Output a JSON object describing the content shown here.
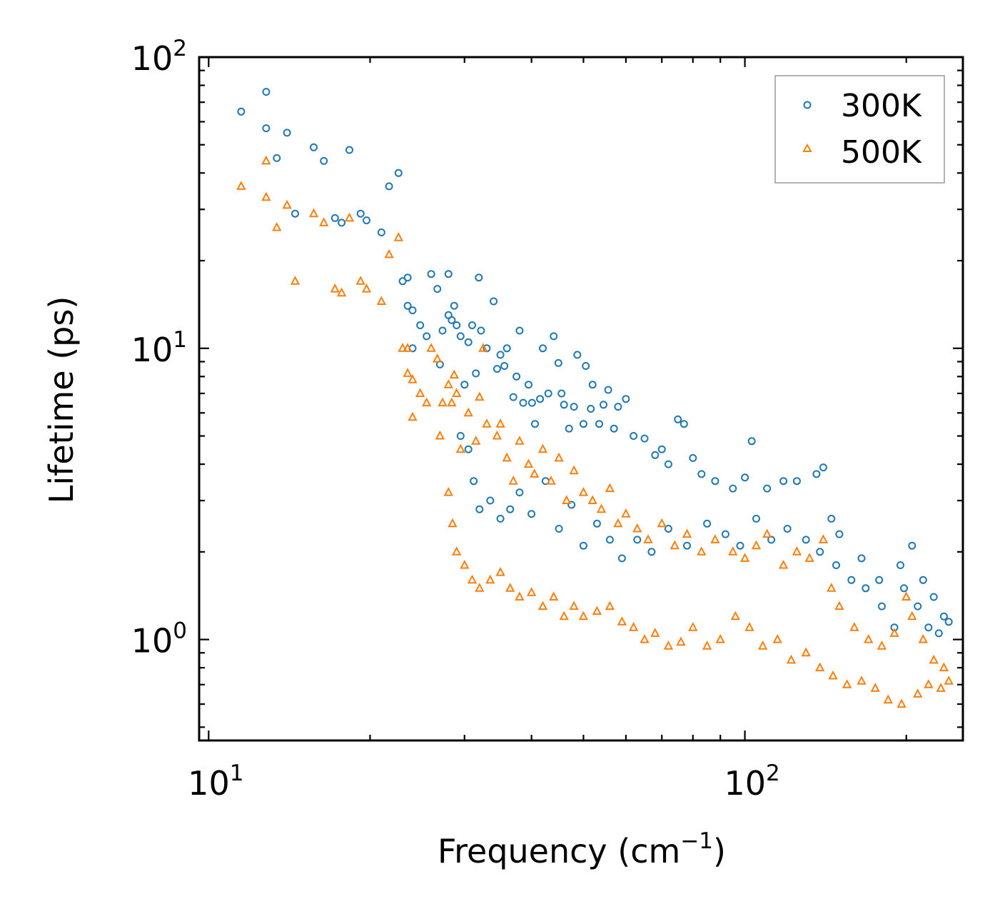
{
  "chart_data": {
    "type": "scatter",
    "title": "",
    "xlabel": "Frequency (cm",
    "xlabel_sup": "−1",
    "xlabel_close": ")",
    "ylabel": "Lifetime (ps)",
    "xscale": "log",
    "yscale": "log",
    "xlim": [
      9.6,
      255
    ],
    "ylim": [
      0.45,
      100
    ],
    "x_ticks": [
      {
        "value": 10,
        "base": "10",
        "exp": "1"
      },
      {
        "value": 100,
        "base": "10",
        "exp": "2"
      }
    ],
    "y_ticks": [
      {
        "value": 1,
        "base": "10",
        "exp": "0"
      },
      {
        "value": 10,
        "base": "10",
        "exp": "1"
      },
      {
        "value": 100,
        "base": "10",
        "exp": "2"
      }
    ],
    "legend": {
      "position": "top-right"
    },
    "series": [
      {
        "name": "300K",
        "marker": "circle",
        "color": "#1f77b4",
        "points": [
          [
            11.5,
            65.0
          ],
          [
            12.8,
            76.0
          ],
          [
            12.8,
            57.0
          ],
          [
            13.4,
            45.0
          ],
          [
            14.0,
            55.0
          ],
          [
            14.5,
            29.0
          ],
          [
            15.7,
            49.0
          ],
          [
            16.4,
            44.0
          ],
          [
            17.2,
            28.0
          ],
          [
            17.7,
            27.0
          ],
          [
            18.3,
            48.0
          ],
          [
            19.2,
            29.0
          ],
          [
            19.7,
            27.5
          ],
          [
            21.0,
            25.0
          ],
          [
            21.7,
            36.0
          ],
          [
            22.6,
            40.0
          ],
          [
            23.0,
            17.0
          ],
          [
            23.5,
            17.5
          ],
          [
            23.5,
            14.0
          ],
          [
            24.0,
            13.5
          ],
          [
            24.0,
            10.0
          ],
          [
            24.8,
            12.0
          ],
          [
            25.5,
            11.0
          ],
          [
            26.0,
            18.0
          ],
          [
            26.7,
            16.0
          ],
          [
            27.0,
            8.8
          ],
          [
            27.3,
            11.5
          ],
          [
            28.0,
            13.0
          ],
          [
            28.0,
            18.0
          ],
          [
            28.4,
            12.5
          ],
          [
            28.7,
            14.0
          ],
          [
            29.0,
            12.0
          ],
          [
            29.5,
            11.0
          ],
          [
            30.0,
            7.5
          ],
          [
            30.5,
            10.5
          ],
          [
            31.0,
            12.0
          ],
          [
            31.5,
            8.2
          ],
          [
            31.9,
            17.5
          ],
          [
            32.2,
            11.5
          ],
          [
            33.0,
            10.0
          ],
          [
            34.0,
            14.5
          ],
          [
            34.5,
            8.5
          ],
          [
            35.0,
            9.5
          ],
          [
            35.6,
            8.7
          ],
          [
            36.0,
            10.0
          ],
          [
            37.0,
            6.8
          ],
          [
            37.5,
            8.0
          ],
          [
            38.0,
            11.5
          ],
          [
            38.6,
            6.5
          ],
          [
            39.5,
            7.5
          ],
          [
            40.1,
            6.5
          ],
          [
            40.6,
            5.5
          ],
          [
            41.5,
            6.7
          ],
          [
            42.0,
            10.0
          ],
          [
            43.0,
            7.0
          ],
          [
            44.0,
            11.0
          ],
          [
            44.9,
            8.9
          ],
          [
            45.5,
            7.0
          ],
          [
            46.0,
            6.4
          ],
          [
            47.0,
            5.3
          ],
          [
            48.0,
            6.3
          ],
          [
            48.7,
            9.5
          ],
          [
            50.0,
            5.5
          ],
          [
            50.5,
            8.7
          ],
          [
            51.6,
            6.2
          ],
          [
            52.0,
            7.5
          ],
          [
            53.5,
            5.5
          ],
          [
            54.5,
            6.4
          ],
          [
            55.6,
            7.2
          ],
          [
            57.0,
            5.3
          ],
          [
            58.0,
            6.3
          ],
          [
            60.0,
            6.7
          ],
          [
            62.0,
            5.0
          ],
          [
            65.0,
            4.9
          ],
          [
            68.0,
            4.3
          ],
          [
            70.0,
            4.5
          ],
          [
            72.0,
            4.0
          ],
          [
            75.0,
            5.7
          ],
          [
            77.0,
            5.5
          ],
          [
            80.0,
            4.2
          ],
          [
            83.0,
            3.7
          ],
          [
            88.0,
            3.5
          ],
          [
            95.0,
            3.3
          ],
          [
            100.0,
            3.6
          ],
          [
            103.0,
            4.8
          ],
          [
            110.0,
            3.3
          ],
          [
            118.0,
            3.5
          ],
          [
            125.0,
            3.5
          ],
          [
            136.0,
            3.7
          ],
          [
            140.0,
            3.9
          ],
          [
            145.0,
            2.6
          ],
          [
            150.0,
            2.3
          ],
          [
            165.0,
            1.9
          ],
          [
            178.0,
            1.6
          ],
          [
            195.0,
            1.8
          ],
          [
            205.0,
            2.1
          ],
          [
            215.0,
            1.6
          ],
          [
            225.0,
            1.4
          ],
          [
            235.0,
            1.2
          ],
          [
            240.0,
            1.15
          ],
          [
            29.5,
            5.0
          ],
          [
            30.5,
            4.5
          ],
          [
            31.2,
            3.5
          ],
          [
            32.0,
            2.8
          ],
          [
            33.5,
            3.0
          ],
          [
            35.0,
            2.6
          ],
          [
            36.5,
            2.8
          ],
          [
            38.0,
            3.2
          ],
          [
            40.0,
            2.7
          ],
          [
            42.5,
            3.5
          ],
          [
            45.0,
            2.4
          ],
          [
            47.5,
            2.9
          ],
          [
            50.0,
            2.1
          ],
          [
            53.0,
            2.5
          ],
          [
            56.0,
            2.2
          ],
          [
            59.0,
            1.9
          ],
          [
            63.0,
            2.2
          ],
          [
            67.0,
            2.0
          ],
          [
            72.0,
            2.4
          ],
          [
            78.0,
            2.1
          ],
          [
            85.0,
            2.5
          ],
          [
            92.0,
            2.3
          ],
          [
            98.0,
            2.1
          ],
          [
            105.0,
            2.6
          ],
          [
            112.0,
            2.2
          ],
          [
            120.0,
            2.4
          ],
          [
            130.0,
            2.2
          ],
          [
            138.0,
            2.0
          ],
          [
            148.0,
            1.8
          ],
          [
            158.0,
            1.6
          ],
          [
            168.0,
            1.5
          ],
          [
            180.0,
            1.3
          ],
          [
            190.0,
            1.1
          ],
          [
            198.0,
            1.5
          ],
          [
            210.0,
            1.3
          ],
          [
            220.0,
            1.1
          ],
          [
            230.0,
            1.05
          ]
        ]
      },
      {
        "name": "500K",
        "marker": "triangle",
        "color": "#ff7f0e",
        "points": [
          [
            11.5,
            36.0
          ],
          [
            12.8,
            44.0
          ],
          [
            12.8,
            33.0
          ],
          [
            13.4,
            26.0
          ],
          [
            14.0,
            31.0
          ],
          [
            14.5,
            17.0
          ],
          [
            15.7,
            29.0
          ],
          [
            16.4,
            27.0
          ],
          [
            17.2,
            16.0
          ],
          [
            17.7,
            15.5
          ],
          [
            18.3,
            28.0
          ],
          [
            19.2,
            17.0
          ],
          [
            19.7,
            16.0
          ],
          [
            21.0,
            14.5
          ],
          [
            21.7,
            21.0
          ],
          [
            22.6,
            24.0
          ],
          [
            23.0,
            10.0
          ],
          [
            23.5,
            10.0
          ],
          [
            23.5,
            8.2
          ],
          [
            24.0,
            7.8
          ],
          [
            24.0,
            5.8
          ],
          [
            24.8,
            7.0
          ],
          [
            25.5,
            6.5
          ],
          [
            26.0,
            10.0
          ],
          [
            26.7,
            9.2
          ],
          [
            27.0,
            5.0
          ],
          [
            27.3,
            6.5
          ],
          [
            28.0,
            7.5
          ],
          [
            28.4,
            6.5
          ],
          [
            28.7,
            8.1
          ],
          [
            29.0,
            7.0
          ],
          [
            29.5,
            4.5
          ],
          [
            30.5,
            6.0
          ],
          [
            31.5,
            4.8
          ],
          [
            32.0,
            6.8
          ],
          [
            32.5,
            10.0
          ],
          [
            33.0,
            5.5
          ],
          [
            34.5,
            5.0
          ],
          [
            35.0,
            5.5
          ],
          [
            36.0,
            4.2
          ],
          [
            37.0,
            3.5
          ],
          [
            38.0,
            4.8
          ],
          [
            39.5,
            4.0
          ],
          [
            40.5,
            3.7
          ],
          [
            42.0,
            4.5
          ],
          [
            43.5,
            3.5
          ],
          [
            45.0,
            4.2
          ],
          [
            46.5,
            3.0
          ],
          [
            48.0,
            3.8
          ],
          [
            50.0,
            3.2
          ],
          [
            52.0,
            3.0
          ],
          [
            54.0,
            2.8
          ],
          [
            56.0,
            3.3
          ],
          [
            58.0,
            2.5
          ],
          [
            60.0,
            2.7
          ],
          [
            63.0,
            2.4
          ],
          [
            66.0,
            2.2
          ],
          [
            70.0,
            2.5
          ],
          [
            74.0,
            2.1
          ],
          [
            78.0,
            2.3
          ],
          [
            83.0,
            2.0
          ],
          [
            88.0,
            2.2
          ],
          [
            95.0,
            2.0
          ],
          [
            100.0,
            1.9
          ],
          [
            105.0,
            2.1
          ],
          [
            110.0,
            2.3
          ],
          [
            118.0,
            1.8
          ],
          [
            125.0,
            2.0
          ],
          [
            132.0,
            1.9
          ],
          [
            140.0,
            2.2
          ],
          [
            145.0,
            1.5
          ],
          [
            150.0,
            1.3
          ],
          [
            160.0,
            1.1
          ],
          [
            170.0,
            1.0
          ],
          [
            180.0,
            0.95
          ],
          [
            190.0,
            1.05
          ],
          [
            200.0,
            1.4
          ],
          [
            205.0,
            1.2
          ],
          [
            215.0,
            1.0
          ],
          [
            225.0,
            0.85
          ],
          [
            235.0,
            0.8
          ],
          [
            240.0,
            0.72
          ],
          [
            28.0,
            3.2
          ],
          [
            28.5,
            2.5
          ],
          [
            29.0,
            2.0
          ],
          [
            30.0,
            1.8
          ],
          [
            31.0,
            1.6
          ],
          [
            32.0,
            1.5
          ],
          [
            33.5,
            1.6
          ],
          [
            35.0,
            1.7
          ],
          [
            36.5,
            1.5
          ],
          [
            38.0,
            1.4
          ],
          [
            40.0,
            1.45
          ],
          [
            42.0,
            1.3
          ],
          [
            44.0,
            1.4
          ],
          [
            46.0,
            1.2
          ],
          [
            48.0,
            1.3
          ],
          [
            50.0,
            1.2
          ],
          [
            53.0,
            1.25
          ],
          [
            56.0,
            1.3
          ],
          [
            59.0,
            1.15
          ],
          [
            62.0,
            1.1
          ],
          [
            65.0,
            1.0
          ],
          [
            68.0,
            1.05
          ],
          [
            72.0,
            0.95
          ],
          [
            76.0,
            0.98
          ],
          [
            80.0,
            1.1
          ],
          [
            85.0,
            0.95
          ],
          [
            90.0,
            1.0
          ],
          [
            96.0,
            1.2
          ],
          [
            102.0,
            1.1
          ],
          [
            108.0,
            0.95
          ],
          [
            115.0,
            1.0
          ],
          [
            122.0,
            0.85
          ],
          [
            130.0,
            0.9
          ],
          [
            138.0,
            0.8
          ],
          [
            146.0,
            0.75
          ],
          [
            155.0,
            0.7
          ],
          [
            165.0,
            0.72
          ],
          [
            175.0,
            0.68
          ],
          [
            185.0,
            0.62
          ],
          [
            196.0,
            0.6
          ],
          [
            210.0,
            0.65
          ],
          [
            220.0,
            0.7
          ],
          [
            232.0,
            0.68
          ]
        ]
      }
    ]
  }
}
